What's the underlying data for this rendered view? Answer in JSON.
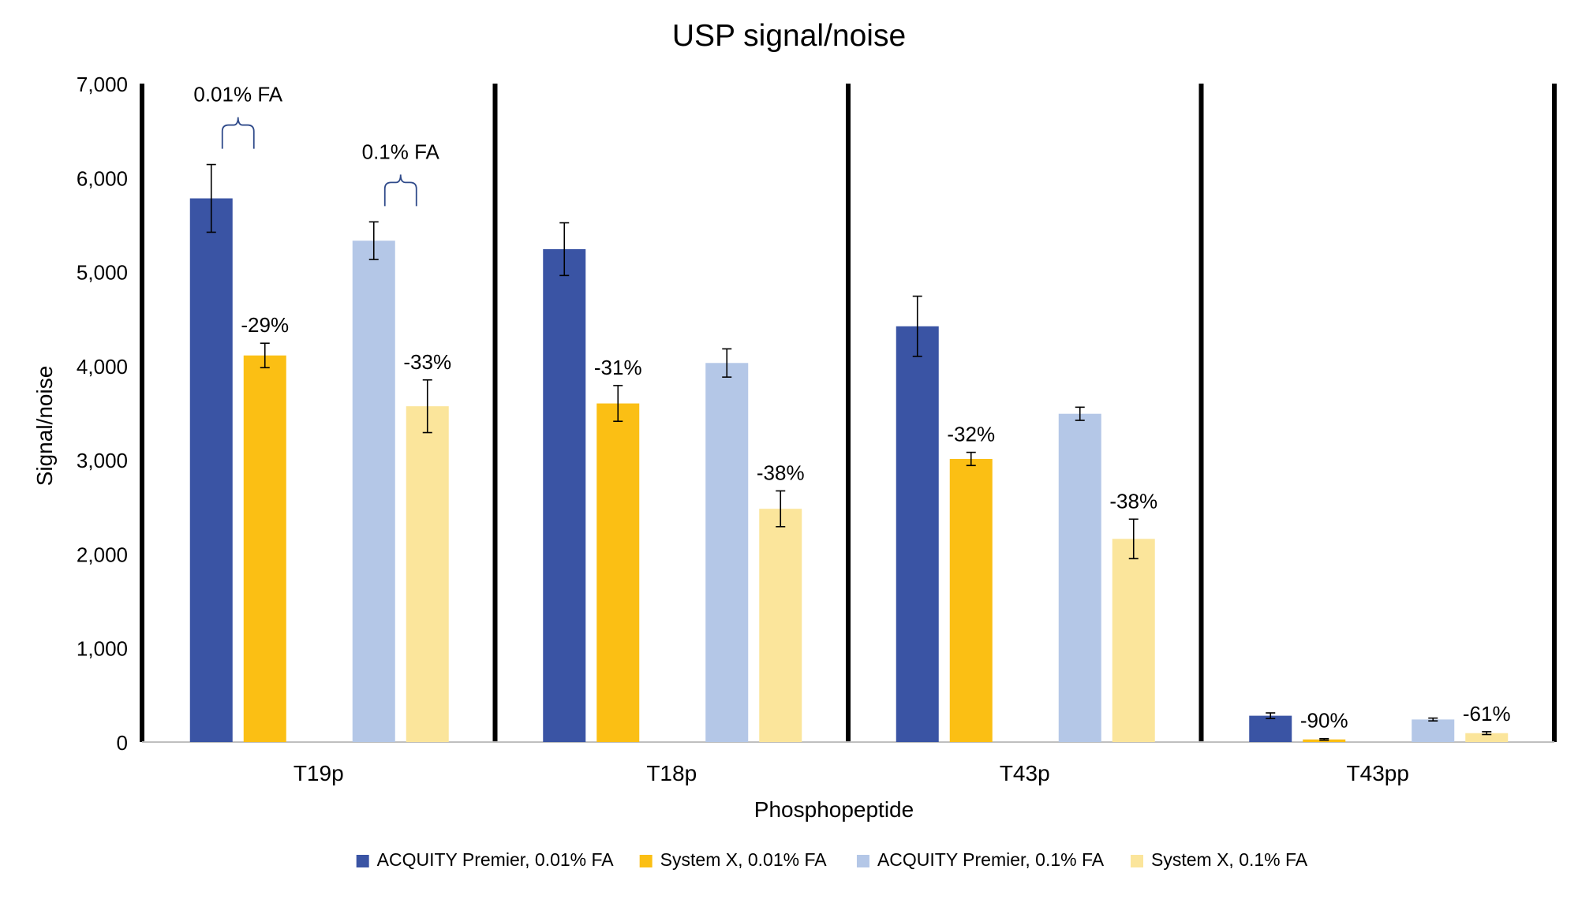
{
  "chart_data": {
    "type": "bar",
    "title": "USP signal/noise",
    "xlabel": "Phosphopeptide",
    "ylabel": "Signal/noise",
    "ylim": [
      0,
      7000
    ],
    "yticks": [
      0,
      1000,
      2000,
      3000,
      4000,
      5000,
      6000,
      7000
    ],
    "ytick_labels": [
      "0",
      "1,000",
      "2,000",
      "3,000",
      "4,000",
      "5,000",
      "6,000",
      "7,000"
    ],
    "categories": [
      "T19p",
      "T18p",
      "T43p",
      "T43pp"
    ],
    "series": [
      {
        "name": "ACQUITY Premier, 0.01% FA",
        "color": "#3a54a4",
        "values": [
          5780,
          5240,
          4420,
          280
        ],
        "errors": [
          360,
          280,
          320,
          30
        ],
        "labels": [
          "",
          "",
          "",
          ""
        ]
      },
      {
        "name": "System X, 0.01% FA",
        "color": "#fbbf14",
        "values": [
          4110,
          3600,
          3010,
          28
        ],
        "errors": [
          130,
          190,
          70,
          8
        ],
        "labels": [
          "-29%",
          "-31%",
          "-32%",
          "-90%"
        ]
      },
      {
        "name": "ACQUITY Premier, 0.1% FA",
        "color": "#b4c7e7",
        "values": [
          5330,
          4030,
          3490,
          240
        ],
        "errors": [
          200,
          150,
          70,
          15
        ],
        "labels": [
          "",
          "",
          "",
          ""
        ]
      },
      {
        "name": "System X, 0.1% FA",
        "color": "#fbe59b",
        "values": [
          3570,
          2480,
          2160,
          95
        ],
        "errors": [
          280,
          190,
          210,
          15
        ],
        "labels": [
          "-33%",
          "-38%",
          "-38%",
          "-61%"
        ]
      }
    ],
    "annotations": [
      {
        "text": "0.01% FA",
        "category": "T19p",
        "series": [
          0,
          1
        ]
      },
      {
        "text": "0.1% FA",
        "category": "T19p",
        "series": [
          2,
          3
        ]
      }
    ],
    "legend_position": "bottom",
    "grid": false
  }
}
